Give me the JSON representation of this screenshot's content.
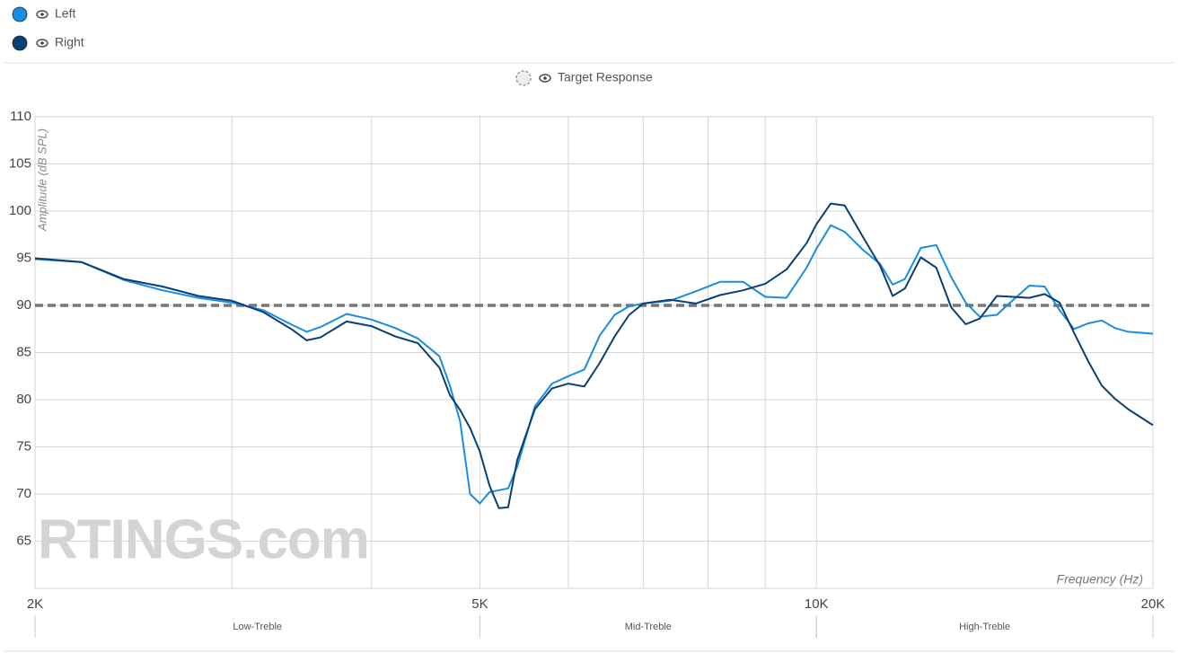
{
  "chart_data": {
    "type": "line",
    "y_label": "Amplitude (dB SPL)",
    "x_label": "Frequency (Hz)",
    "watermark": "RTINGS.com",
    "log_x": true,
    "grid": true,
    "xlim": [
      2000,
      20000
    ],
    "ylim": [
      60,
      110
    ],
    "xticks": [
      {
        "value": 2000,
        "label": "2K"
      },
      {
        "value": 5000,
        "label": "5K"
      },
      {
        "value": 10000,
        "label": "10K"
      },
      {
        "value": 20000,
        "label": "20K"
      }
    ],
    "xminor": [
      3000,
      4000,
      6000,
      7000,
      8000,
      9000
    ],
    "yticks": [
      65,
      70,
      75,
      80,
      85,
      90,
      95,
      100,
      105,
      110
    ],
    "regions": [
      {
        "label": "Low-Treble",
        "from": 2000,
        "to": 5000
      },
      {
        "label": "Mid-Treble",
        "from": 5000,
        "to": 10000
      },
      {
        "label": "High-Treble",
        "from": 10000,
        "to": 20000
      }
    ],
    "target": {
      "name": "Target Response",
      "value": 90,
      "color": "#777777"
    },
    "x": [
      2000,
      2200,
      2400,
      2600,
      2800,
      3000,
      3200,
      3400,
      3500,
      3600,
      3800,
      4000,
      4200,
      4400,
      4600,
      4700,
      4800,
      4900,
      5000,
      5100,
      5200,
      5300,
      5400,
      5600,
      5800,
      6000,
      6200,
      6400,
      6600,
      6800,
      7000,
      7400,
      7800,
      8200,
      8600,
      9000,
      9400,
      9800,
      10000,
      10300,
      10600,
      11000,
      11400,
      11700,
      12000,
      12400,
      12800,
      13200,
      13600,
      14000,
      14500,
      15000,
      15500,
      16000,
      16500,
      17000,
      17500,
      18000,
      18500,
      19000,
      20000
    ],
    "series": [
      {
        "name": "Left",
        "color": "#1b8de0",
        "values": [
          94.9,
          94.6,
          92.7,
          91.6,
          90.8,
          90.3,
          89.5,
          87.9,
          87.2,
          87.7,
          89.1,
          88.5,
          87.6,
          86.5,
          84.6,
          81.5,
          77.7,
          70.0,
          69.0,
          70.2,
          70.4,
          70.6,
          72.9,
          79.3,
          81.7,
          82.5,
          83.2,
          86.8,
          89.0,
          89.9,
          90.2,
          90.5,
          91.5,
          92.5,
          92.5,
          90.9,
          90.8,
          94.0,
          96.0,
          98.5,
          97.8,
          95.9,
          94.4,
          92.2,
          92.8,
          96.1,
          96.4,
          93.0,
          90.3,
          88.8,
          89.0,
          90.6,
          92.1,
          92.0,
          89.5,
          87.5,
          88.1,
          88.4,
          87.6,
          87.2,
          87.0
        ]
      },
      {
        "name": "Right",
        "color": "#0a3f73",
        "values": [
          95.0,
          94.6,
          92.8,
          92.0,
          91.0,
          90.5,
          89.3,
          87.4,
          86.3,
          86.6,
          88.3,
          87.8,
          86.7,
          86.0,
          83.4,
          80.5,
          78.9,
          77.0,
          74.5,
          70.9,
          68.5,
          68.6,
          73.6,
          79.0,
          81.2,
          81.7,
          81.4,
          83.9,
          86.7,
          89.0,
          90.2,
          90.6,
          90.2,
          91.1,
          91.6,
          92.3,
          93.8,
          96.6,
          98.6,
          100.8,
          100.6,
          97.3,
          94.2,
          91.0,
          91.8,
          95.1,
          94.0,
          89.8,
          88.0,
          88.6,
          91.0,
          90.9,
          90.8,
          91.2,
          90.3,
          87.1,
          84.1,
          81.5,
          80.1,
          79.0,
          77.3
        ]
      }
    ]
  }
}
